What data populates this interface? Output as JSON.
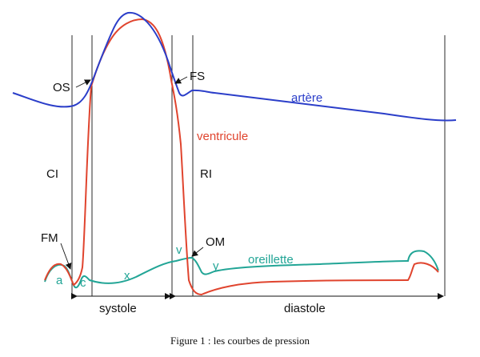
{
  "labels": {
    "os": "OS",
    "fs": "FS",
    "ci": "CI",
    "ri": "RI",
    "fm": "FM",
    "om": "OM",
    "a": "a",
    "c": "c",
    "x": "x",
    "v": "v",
    "y": "y"
  },
  "curves": {
    "artery": {
      "name": "artère",
      "color": "#2b3ec9"
    },
    "ventricle": {
      "name": "ventricule",
      "color": "#e0442e"
    },
    "atrium": {
      "name": "oreillette",
      "color": "#22a596"
    }
  },
  "phases": {
    "systole": "systole",
    "diastole": "diastole"
  },
  "caption": "Figure 1 : les courbes de pression"
}
